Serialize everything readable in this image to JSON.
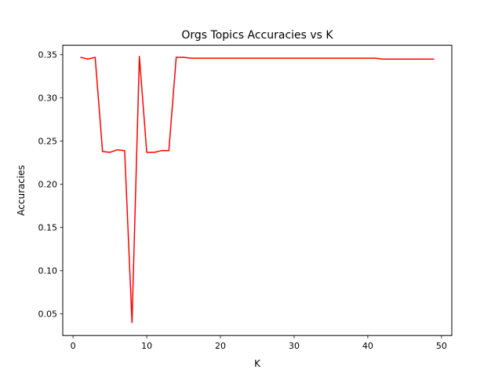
{
  "chart_data": {
    "type": "line",
    "title": "Orgs Topics Accuracies vs K",
    "xlabel": "K",
    "ylabel": "Accuracies",
    "xlim": [
      -1.4,
      51.4
    ],
    "ylim": [
      0.025,
      0.361
    ],
    "xticks": [
      0,
      10,
      20,
      30,
      40,
      50
    ],
    "xtick_labels": [
      "0",
      "10",
      "20",
      "30",
      "40",
      "50"
    ],
    "yticks": [
      0.05,
      0.1,
      0.15,
      0.2,
      0.25,
      0.3,
      0.35
    ],
    "ytick_labels": [
      "0.05",
      "0.10",
      "0.15",
      "0.20",
      "0.25",
      "0.30",
      "0.35"
    ],
    "grid": false,
    "legend": "none",
    "series": [
      {
        "color": "#ff0000",
        "x": [
          1,
          2,
          3,
          4,
          5,
          6,
          7,
          8,
          9,
          10,
          11,
          12,
          13,
          14,
          15,
          16,
          17,
          18,
          19,
          20,
          21,
          22,
          23,
          24,
          25,
          26,
          27,
          28,
          29,
          30,
          31,
          32,
          33,
          34,
          35,
          36,
          37,
          38,
          39,
          40,
          41,
          42,
          43,
          44,
          45,
          46,
          47,
          48,
          49
        ],
        "values": [
          0.347,
          0.345,
          0.347,
          0.238,
          0.237,
          0.24,
          0.239,
          0.04,
          0.348,
          0.237,
          0.237,
          0.239,
          0.239,
          0.347,
          0.347,
          0.346,
          0.346,
          0.346,
          0.346,
          0.346,
          0.346,
          0.346,
          0.346,
          0.346,
          0.346,
          0.346,
          0.346,
          0.346,
          0.346,
          0.346,
          0.346,
          0.346,
          0.346,
          0.346,
          0.346,
          0.346,
          0.346,
          0.346,
          0.346,
          0.346,
          0.346,
          0.345,
          0.345,
          0.345,
          0.345,
          0.345,
          0.345,
          0.345,
          0.345
        ]
      }
    ]
  }
}
